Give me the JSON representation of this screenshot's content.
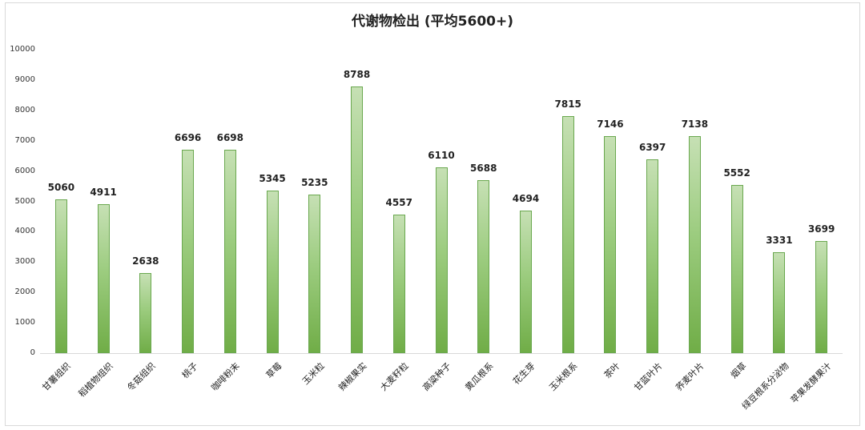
{
  "chart_data": {
    "type": "bar",
    "title": "代谢物检出 (平均5600+)",
    "xlabel": "",
    "ylabel": "",
    "ylim": [
      0,
      10000
    ],
    "yticks": [
      0,
      1000,
      2000,
      3000,
      4000,
      5000,
      6000,
      7000,
      8000,
      9000,
      10000
    ],
    "grid": false,
    "legend": null,
    "bar_color": "#70ad47",
    "categories": [
      "甘薯组织",
      "稻植物组织",
      "冬菇组织",
      "桃子",
      "咖啡粉末",
      "草莓",
      "玉米粒",
      "辣椒果实",
      "大麦籽粒",
      "高粱种子",
      "黄瓜根系",
      "花生芽",
      "玉米根系",
      "茶叶",
      "甘蓝叶片",
      "荞麦叶片",
      "烟草",
      "绿豆根系分泌物",
      "苹果发酵果汁"
    ],
    "values": [
      5060,
      4911,
      2638,
      6696,
      6698,
      5345,
      5235,
      8788,
      4557,
      6110,
      5688,
      4694,
      7815,
      7146,
      6397,
      7138,
      5552,
      3331,
      3699
    ]
  }
}
